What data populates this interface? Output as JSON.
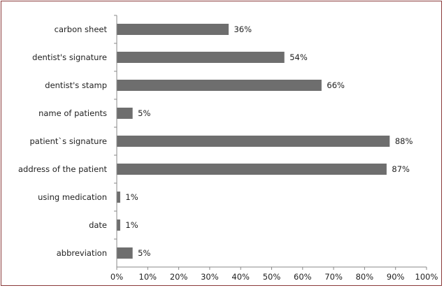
{
  "chart_data": {
    "type": "bar",
    "orientation": "horizontal",
    "categories": [
      "carbon sheet",
      "dentist's signature",
      "dentist's stamp",
      "name of patients",
      "patient`s signature",
      "address of the patient",
      "using medication",
      "date",
      "abbreviation"
    ],
    "values": [
      36,
      54,
      66,
      5,
      88,
      87,
      1,
      1,
      5
    ],
    "value_labels": [
      "36%",
      "54%",
      "66%",
      "5%",
      "88%",
      "87%",
      "1%",
      "1%",
      "5%"
    ],
    "xlim": [
      0,
      100
    ],
    "xticks": [
      "0%",
      "10%",
      "20%",
      "30%",
      "40%",
      "50%",
      "60%",
      "70%",
      "80%",
      "90%",
      "100%"
    ],
    "title": "",
    "xlabel": "",
    "ylabel": "",
    "grid": false,
    "bar_color": "#6e6e6e",
    "border_color": "#8b3a3a"
  }
}
